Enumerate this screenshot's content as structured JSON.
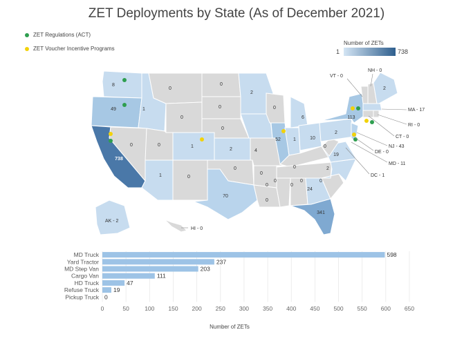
{
  "title": "ZET Deployments by State (As of December 2021)",
  "legend": {
    "act_label": "ZET Regulations (ACT)",
    "act_color": "#2e9e4f",
    "voucher_label": "ZET Voucher Incentive Programs",
    "voucher_color": "#f2d20a"
  },
  "color_scale": {
    "title": "Number of ZETs",
    "min": "1",
    "max": "738",
    "low_color": "#d4e5f4",
    "high_color": "#2f5f8e",
    "zero_color": "#d9d9d9"
  },
  "map_labels": {
    "WA": "8",
    "OR": "49",
    "CA": "738",
    "ID": "1",
    "NV": "0",
    "MT": "0",
    "WY": "0",
    "UT": "0",
    "CO": "1",
    "AZ": "1",
    "NM": "0",
    "ND": "0",
    "SD": "0",
    "NE": "0",
    "KS": "2",
    "OK": "0",
    "TX": "70",
    "MN": "2",
    "IA": "4",
    "MO": "0",
    "AR": "0",
    "LA": "0",
    "WI": "0",
    "IL": "52",
    "MI": "6",
    "IN": "1",
    "OH": "10",
    "KY": "0",
    "TN": "0",
    "MS": "0",
    "AL": "0",
    "GA": "24",
    "FL": "341",
    "SC": "0",
    "NC": "2",
    "VA": "19",
    "WV": "0",
    "PA": "2",
    "NY": "113",
    "ME": "2",
    "VT": "VT - 0",
    "NH": "NH - 0",
    "MA": "MA - 17",
    "RI": "RI - 0",
    "CT": "CT - 0",
    "NJ": "NJ - 43",
    "DE": "DE - 0",
    "MD": "MD - 11",
    "DC": "DC - 1",
    "AK": "AK - 2",
    "HI": "HI - 0"
  },
  "chart_data": {
    "type": "bar",
    "orientation": "horizontal",
    "categories": [
      "MD Truck",
      "Yard Tractor",
      "MD Step Van",
      "Cargo Van",
      "HD Truck",
      "Refuse Truck",
      "Pickup Truck"
    ],
    "values": [
      598,
      237,
      203,
      111,
      47,
      19,
      0
    ],
    "value_labels": [
      "598",
      "237",
      "203",
      "111",
      "47",
      "19",
      "0"
    ],
    "xlabel": "Number of ZETs",
    "xlim": [
      0,
      650
    ],
    "xticks": [
      "0",
      "50",
      "100",
      "150",
      "200",
      "250",
      "300",
      "350",
      "400",
      "450",
      "500",
      "550",
      "600",
      "650"
    ],
    "bar_color": "#9dc3e6"
  }
}
